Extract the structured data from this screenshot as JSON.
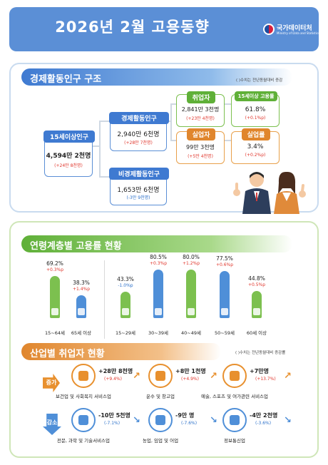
{
  "header": {
    "title": "2026년  2월  고용동향",
    "logo_name": "국가데이터처",
    "logo_sub": "Ministry of Data and Statistics"
  },
  "colors": {
    "blue": "#3f7ad1",
    "green": "#5fb038",
    "orange": "#e0862d",
    "increase": "#e0352b",
    "decrease": "#2a6fc9"
  },
  "structure": {
    "heading": "경제활동인구 구조",
    "note": "( )수치는 전년동월대비 증감",
    "pop15": {
      "label": "15세이상인구",
      "value": "4,594만 2천명",
      "change": "(+24만 8천명)"
    },
    "econ_active": {
      "label": "경제활동인구",
      "value": "2,940만 6천명",
      "change": "(+28만 7천명)"
    },
    "non_active": {
      "label": "비경제활동인구",
      "value": "1,653만 6천명",
      "change": "(-3만 9천명)"
    },
    "employed": {
      "label": "취업자",
      "value": "2,841만 3천명",
      "change": "(+23만 4천명)"
    },
    "emp_rate": {
      "label": "15세이상 고용률",
      "value": "61.8%",
      "change": "(+0.1%p)"
    },
    "unemployed": {
      "label": "실업자",
      "value": "99만 3천명",
      "change": "(+5만 4천명)"
    },
    "unemp_rate": {
      "label": "실업률",
      "value": "3.4%",
      "change": "(+0.2%p)"
    }
  },
  "age": {
    "heading": "연령계층별 고용률 현황",
    "groups": [
      {
        "name": "15~64세",
        "value": "69.2%",
        "change": "+0.3%p",
        "rate": 69.2,
        "dir": "up"
      },
      {
        "name": "65세 이상",
        "value": "38.3%",
        "change": "+1.4%p",
        "rate": 38.3,
        "dir": "up"
      },
      {
        "name": "15~29세",
        "value": "43.3%",
        "change": "-1.0%p",
        "rate": 43.3,
        "dir": "down"
      },
      {
        "name": "30~39세",
        "value": "80.5%",
        "change": "+0.3%p",
        "rate": 80.5,
        "dir": "up"
      },
      {
        "name": "40~49세",
        "value": "80.0%",
        "change": "+1.2%p",
        "rate": 80.0,
        "dir": "up"
      },
      {
        "name": "50~59세",
        "value": "77.5%",
        "change": "+0.6%p",
        "rate": 77.5,
        "dir": "up"
      },
      {
        "name": "60세 이상",
        "value": "44.8%",
        "change": "+0.5%p",
        "rate": 44.8,
        "dir": "up"
      }
    ]
  },
  "industry": {
    "heading": "산업별 취업자 현황",
    "note": "( )수치는 전년동월대비 증감률",
    "increase_label": "증가",
    "decrease_label": "감소",
    "increase": [
      {
        "value": "+28만 8천명",
        "change": "(+9.4%)",
        "name": "보건업 및 사회복지 서비스업",
        "icon": "medical-kit-icon"
      },
      {
        "value": "+8만 1천명",
        "change": "(+4.9%)",
        "name": "운수 및 창고업",
        "icon": "truck-icon"
      },
      {
        "value": "+7만명",
        "change": "(+13.7%)",
        "name": "예술, 스포츠 및 여가관련 서비스업",
        "icon": "palette-icon"
      }
    ],
    "decrease": [
      {
        "value": "-10만 5천명",
        "change": "(-7.1%)",
        "name": "전문, 과학 및 기술서비스업",
        "icon": "flask-icon"
      },
      {
        "value": "-9만 명",
        "change": "(-7.6%)",
        "name": "농업, 임업 및 어업",
        "icon": "wheat-icon"
      },
      {
        "value": "-4만 2천명",
        "change": "(-3.6%)",
        "name": "정보통신업",
        "icon": "phone-icon"
      }
    ]
  }
}
